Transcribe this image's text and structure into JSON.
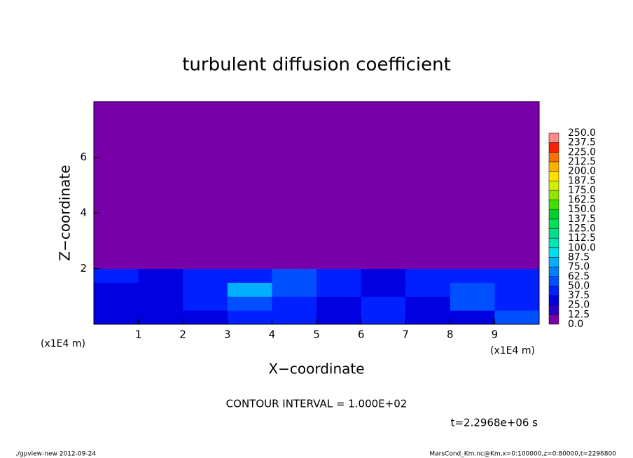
{
  "chart_data": {
    "type": "heatmap",
    "title": "turbulent diffusion coefficient",
    "x_label": "X−coordinate",
    "y_label": "Z−coordinate",
    "x_unit": "(x1E4 m)",
    "xlim": [
      0,
      10
    ],
    "ylim": [
      0,
      8
    ],
    "xticks": [
      1,
      2,
      3,
      4,
      5,
      6,
      7,
      8,
      9
    ],
    "yticks": [
      2,
      4,
      6
    ],
    "x_edges": [
      0,
      1,
      2,
      3,
      4,
      5,
      6,
      7,
      8,
      9,
      10
    ],
    "z_edges": [
      0,
      0.5,
      1,
      1.5,
      2,
      8
    ],
    "values": [
      [
        30,
        25,
        25,
        40,
        40,
        30,
        40,
        30,
        30,
        50
      ],
      [
        30,
        35,
        40,
        55,
        40,
        30,
        45,
        35,
        50,
        40
      ],
      [
        35,
        30,
        40,
        75,
        60,
        40,
        35,
        40,
        55,
        40
      ],
      [
        40,
        35,
        40,
        45,
        60,
        40,
        35,
        40,
        45,
        40
      ],
      [
        0,
        0,
        0,
        0,
        0,
        0,
        0,
        0,
        0,
        0
      ]
    ],
    "colorbar": {
      "levels": [
        {
          "value": 0,
          "label": "0.0"
        },
        12.5,
        {
          "value": 25,
          "label": "25.0"
        },
        37.5,
        {
          "value": 50,
          "label": "50.0"
        },
        62.5,
        {
          "value": 75,
          "label": "75.0"
        },
        87.5,
        {
          "value": 100,
          "label": "100.0"
        },
        112.5,
        {
          "value": 125,
          "label": "125.0"
        },
        137.5,
        {
          "value": 150,
          "label": "150.0"
        },
        162.5,
        {
          "value": 175,
          "label": "175.0"
        },
        187.5,
        {
          "value": 200,
          "label": "200.0"
        },
        212.5,
        {
          "value": 225,
          "label": "225.0"
        },
        237.5,
        {
          "value": 250,
          "label": "250.0"
        }
      ],
      "colors": [
        "#7800a8",
        "#2a00c8",
        "#0000e0",
        "#0020ff",
        "#0050ff",
        "#0080ff",
        "#00b0ff",
        "#00e0f0",
        "#00e8b8",
        "#00e088",
        "#00e058",
        "#00d028",
        "#40e000",
        "#90e800",
        "#d0f000",
        "#ffe000",
        "#ffb000",
        "#ff7000",
        "#ff2000",
        "#ff8a8a"
      ]
    },
    "contour_interval": "CONTOUR INTERVAL = 1.000E+02",
    "time_label": "t=2.2968e+06 s",
    "footer_left": "./gpview-new  2012-09-24",
    "footer_right": "MarsCond_Km.nc@Km,x=0:100000,z=0:80000,t=2296800"
  }
}
